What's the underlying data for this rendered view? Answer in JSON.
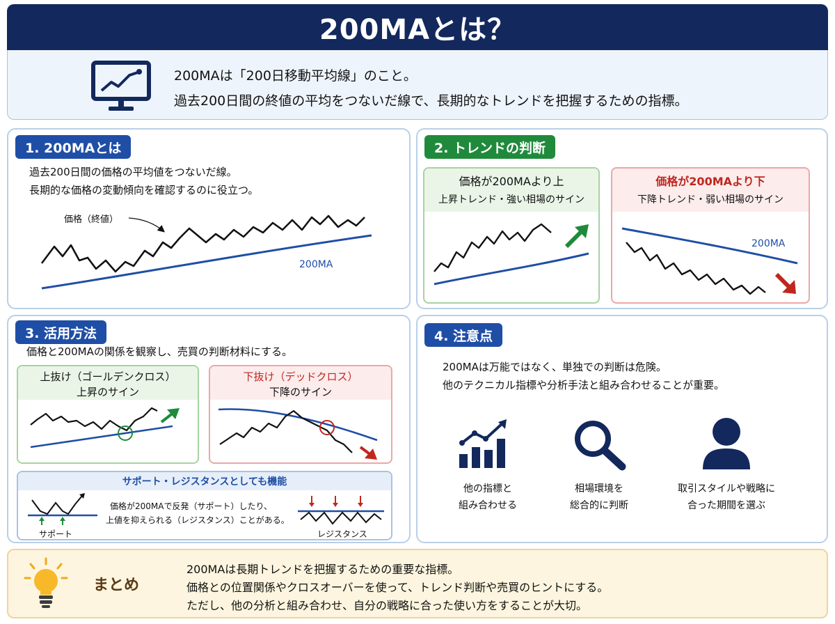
{
  "header": {
    "title": "200MAとは？",
    "intro_line1": "200MAは「200日移動平均線」のこと。",
    "intro_line2": "過去200日間の終値の平均をつないだ線で、長期的なトレンドを把握するための指標。",
    "intro_icon": "monitor-chart-icon"
  },
  "section1": {
    "badge": "1. 200MAとは",
    "line1": "過去200日間の価格の平均値をつないだ線。",
    "line2": "長期的な価格の変動傾向を確認するのに役立つ。",
    "price_label": "価格（終値）",
    "ma_label": "200MA"
  },
  "section2": {
    "badge": "2. トレンドの判断",
    "up": {
      "title": "価格が200MAより上",
      "subtitle": "上昇トレンド・強い相場のサイン",
      "arrow_icon": "arrow-up-right-icon"
    },
    "down": {
      "title": "価格が200MAより下",
      "subtitle": "下降トレンド・弱い相場のサイン",
      "ma_label": "200MA",
      "arrow_icon": "arrow-down-right-icon"
    }
  },
  "section3": {
    "badge": "3. 活用方法",
    "intro": "価格と200MAの関係を観察し、売買の判断材料にする。",
    "golden": {
      "title": "上抜け（ゴールデンクロス）",
      "subtitle": "上昇のサイン"
    },
    "dead": {
      "title": "下抜け（デッドクロス）",
      "subtitle": "下降のサイン"
    },
    "sr": {
      "title": "サポート・レジスタンスとしても機能",
      "line1": "価格が200MAで反発（サポート）したり、",
      "line2": "上値を抑えられる（レジスタンス）ことがある。",
      "support_label": "サポート",
      "resistance_label": "レジスタンス"
    }
  },
  "section4": {
    "badge": "4. 注意点",
    "line1": "200MAは万能ではなく、単独での判断は危険。",
    "line2": "他のテクニカル指標や分析手法と組み合わせることが重要。",
    "items": [
      {
        "icon": "bar-chart-icon",
        "line1": "他の指標と",
        "line2": "組み合わせる"
      },
      {
        "icon": "magnifier-icon",
        "line1": "相場環境を",
        "line2": "総合的に判断"
      },
      {
        "icon": "person-icon",
        "line1": "取引スタイルや戦略に",
        "line2": "合った期間を選ぶ"
      }
    ]
  },
  "summary": {
    "label": "まとめ",
    "icon": "lightbulb-icon",
    "line1": "200MAは長期トレンドを把握するための重要な指標。",
    "line2": "価格との位置関係やクロスオーバーを使って、トレンド判断や売買のヒントにする。",
    "line3": "ただし、他の分析と組み合わせ、自分の戦略に合った使い方をすることが大切。"
  },
  "colors": {
    "navy": "#13285c",
    "blue": "#1f4ea6",
    "green": "#1f8a3b",
    "red": "#c0261e",
    "summary_bg": "#fdf5df"
  }
}
